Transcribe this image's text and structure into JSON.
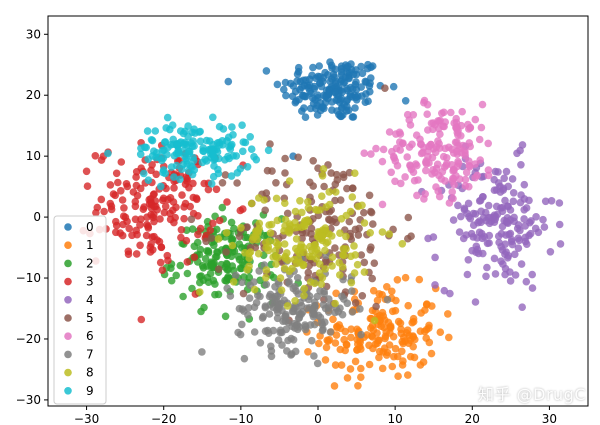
{
  "chart_data": {
    "type": "scatter",
    "xlim": [
      -35,
      35
    ],
    "ylim": [
      -31,
      33
    ],
    "xticks": [
      -30,
      -20,
      -10,
      0,
      10,
      20,
      30
    ],
    "yticks": [
      -30,
      -20,
      -10,
      0,
      10,
      20,
      30
    ],
    "xtick_labels": [
      "−30",
      "−20",
      "−10",
      "0",
      "10",
      "20",
      "30"
    ],
    "ytick_labels": [
      "−30",
      "−20",
      "−10",
      "0",
      "10",
      "20",
      "30"
    ],
    "grid": false,
    "legend_position": "lower-left",
    "series": [
      {
        "name": "0",
        "color": "#1f77b4",
        "center": [
          2,
          21
        ],
        "spread": [
          4.5,
          3.5
        ],
        "count": 180
      },
      {
        "name": "1",
        "color": "#ff7f0e",
        "center": [
          8,
          -19
        ],
        "spread": [
          5,
          5
        ],
        "count": 170
      },
      {
        "name": "2",
        "color": "#2ca02c",
        "center": [
          -12,
          -7
        ],
        "spread": [
          4.5,
          4.5
        ],
        "count": 170
      },
      {
        "name": "3",
        "color": "#d62728",
        "center": [
          -21,
          2
        ],
        "spread": [
          5,
          6.5
        ],
        "count": 180
      },
      {
        "name": "4",
        "color": "#9467bd",
        "center": [
          23,
          -1
        ],
        "spread": [
          5,
          7
        ],
        "count": 180
      },
      {
        "name": "5",
        "color": "#8c564b",
        "center": [
          0,
          -2
        ],
        "spread": [
          7,
          9
        ],
        "count": 160
      },
      {
        "name": "6",
        "color": "#e377c2",
        "center": [
          16,
          11
        ],
        "spread": [
          5,
          5
        ],
        "count": 170
      },
      {
        "name": "7",
        "color": "#7f7f7f",
        "center": [
          -3,
          -15
        ],
        "spread": [
          5,
          4.5
        ],
        "count": 180
      },
      {
        "name": "8",
        "color": "#bcbd22",
        "center": [
          -2,
          -4
        ],
        "spread": [
          6,
          6
        ],
        "count": 180
      },
      {
        "name": "9",
        "color": "#17becf",
        "center": [
          -16,
          11
        ],
        "spread": [
          5,
          3
        ],
        "count": 150
      }
    ]
  },
  "watermark": {
    "text": "知乎 @DrugC"
  }
}
